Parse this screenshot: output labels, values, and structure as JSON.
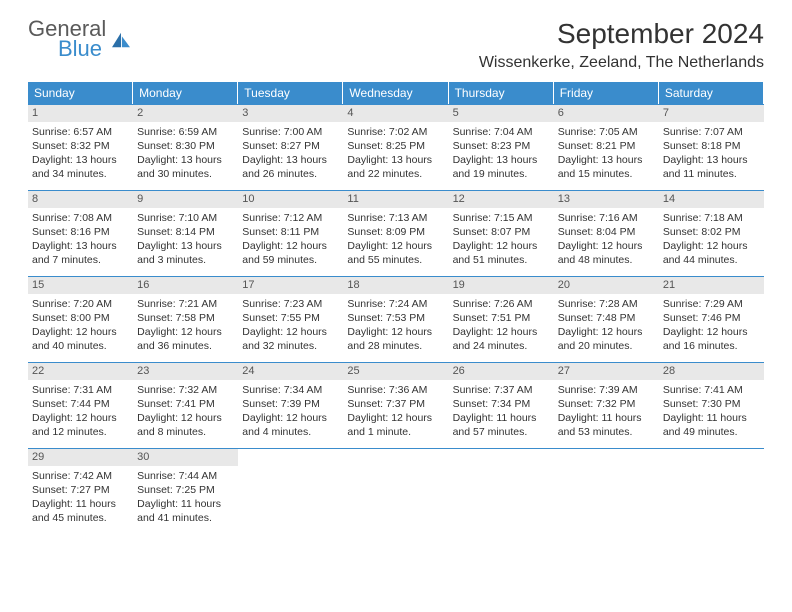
{
  "logo": {
    "line1": "General",
    "line2": "Blue"
  },
  "title": "September 2024",
  "location": "Wissenkerke, Zeeland, The Netherlands",
  "headerColor": "#3a8ccc",
  "dow": [
    "Sunday",
    "Monday",
    "Tuesday",
    "Wednesday",
    "Thursday",
    "Friday",
    "Saturday"
  ],
  "days": [
    {
      "n": "1",
      "sr": "Sunrise: 6:57 AM",
      "ss": "Sunset: 8:32 PM",
      "dl": "Daylight: 13 hours and 34 minutes."
    },
    {
      "n": "2",
      "sr": "Sunrise: 6:59 AM",
      "ss": "Sunset: 8:30 PM",
      "dl": "Daylight: 13 hours and 30 minutes."
    },
    {
      "n": "3",
      "sr": "Sunrise: 7:00 AM",
      "ss": "Sunset: 8:27 PM",
      "dl": "Daylight: 13 hours and 26 minutes."
    },
    {
      "n": "4",
      "sr": "Sunrise: 7:02 AM",
      "ss": "Sunset: 8:25 PM",
      "dl": "Daylight: 13 hours and 22 minutes."
    },
    {
      "n": "5",
      "sr": "Sunrise: 7:04 AM",
      "ss": "Sunset: 8:23 PM",
      "dl": "Daylight: 13 hours and 19 minutes."
    },
    {
      "n": "6",
      "sr": "Sunrise: 7:05 AM",
      "ss": "Sunset: 8:21 PM",
      "dl": "Daylight: 13 hours and 15 minutes."
    },
    {
      "n": "7",
      "sr": "Sunrise: 7:07 AM",
      "ss": "Sunset: 8:18 PM",
      "dl": "Daylight: 13 hours and 11 minutes."
    },
    {
      "n": "8",
      "sr": "Sunrise: 7:08 AM",
      "ss": "Sunset: 8:16 PM",
      "dl": "Daylight: 13 hours and 7 minutes."
    },
    {
      "n": "9",
      "sr": "Sunrise: 7:10 AM",
      "ss": "Sunset: 8:14 PM",
      "dl": "Daylight: 13 hours and 3 minutes."
    },
    {
      "n": "10",
      "sr": "Sunrise: 7:12 AM",
      "ss": "Sunset: 8:11 PM",
      "dl": "Daylight: 12 hours and 59 minutes."
    },
    {
      "n": "11",
      "sr": "Sunrise: 7:13 AM",
      "ss": "Sunset: 8:09 PM",
      "dl": "Daylight: 12 hours and 55 minutes."
    },
    {
      "n": "12",
      "sr": "Sunrise: 7:15 AM",
      "ss": "Sunset: 8:07 PM",
      "dl": "Daylight: 12 hours and 51 minutes."
    },
    {
      "n": "13",
      "sr": "Sunrise: 7:16 AM",
      "ss": "Sunset: 8:04 PM",
      "dl": "Daylight: 12 hours and 48 minutes."
    },
    {
      "n": "14",
      "sr": "Sunrise: 7:18 AM",
      "ss": "Sunset: 8:02 PM",
      "dl": "Daylight: 12 hours and 44 minutes."
    },
    {
      "n": "15",
      "sr": "Sunrise: 7:20 AM",
      "ss": "Sunset: 8:00 PM",
      "dl": "Daylight: 12 hours and 40 minutes."
    },
    {
      "n": "16",
      "sr": "Sunrise: 7:21 AM",
      "ss": "Sunset: 7:58 PM",
      "dl": "Daylight: 12 hours and 36 minutes."
    },
    {
      "n": "17",
      "sr": "Sunrise: 7:23 AM",
      "ss": "Sunset: 7:55 PM",
      "dl": "Daylight: 12 hours and 32 minutes."
    },
    {
      "n": "18",
      "sr": "Sunrise: 7:24 AM",
      "ss": "Sunset: 7:53 PM",
      "dl": "Daylight: 12 hours and 28 minutes."
    },
    {
      "n": "19",
      "sr": "Sunrise: 7:26 AM",
      "ss": "Sunset: 7:51 PM",
      "dl": "Daylight: 12 hours and 24 minutes."
    },
    {
      "n": "20",
      "sr": "Sunrise: 7:28 AM",
      "ss": "Sunset: 7:48 PM",
      "dl": "Daylight: 12 hours and 20 minutes."
    },
    {
      "n": "21",
      "sr": "Sunrise: 7:29 AM",
      "ss": "Sunset: 7:46 PM",
      "dl": "Daylight: 12 hours and 16 minutes."
    },
    {
      "n": "22",
      "sr": "Sunrise: 7:31 AM",
      "ss": "Sunset: 7:44 PM",
      "dl": "Daylight: 12 hours and 12 minutes."
    },
    {
      "n": "23",
      "sr": "Sunrise: 7:32 AM",
      "ss": "Sunset: 7:41 PM",
      "dl": "Daylight: 12 hours and 8 minutes."
    },
    {
      "n": "24",
      "sr": "Sunrise: 7:34 AM",
      "ss": "Sunset: 7:39 PM",
      "dl": "Daylight: 12 hours and 4 minutes."
    },
    {
      "n": "25",
      "sr": "Sunrise: 7:36 AM",
      "ss": "Sunset: 7:37 PM",
      "dl": "Daylight: 12 hours and 1 minute."
    },
    {
      "n": "26",
      "sr": "Sunrise: 7:37 AM",
      "ss": "Sunset: 7:34 PM",
      "dl": "Daylight: 11 hours and 57 minutes."
    },
    {
      "n": "27",
      "sr": "Sunrise: 7:39 AM",
      "ss": "Sunset: 7:32 PM",
      "dl": "Daylight: 11 hours and 53 minutes."
    },
    {
      "n": "28",
      "sr": "Sunrise: 7:41 AM",
      "ss": "Sunset: 7:30 PM",
      "dl": "Daylight: 11 hours and 49 minutes."
    },
    {
      "n": "29",
      "sr": "Sunrise: 7:42 AM",
      "ss": "Sunset: 7:27 PM",
      "dl": "Daylight: 11 hours and 45 minutes."
    },
    {
      "n": "30",
      "sr": "Sunrise: 7:44 AM",
      "ss": "Sunset: 7:25 PM",
      "dl": "Daylight: 11 hours and 41 minutes."
    }
  ]
}
